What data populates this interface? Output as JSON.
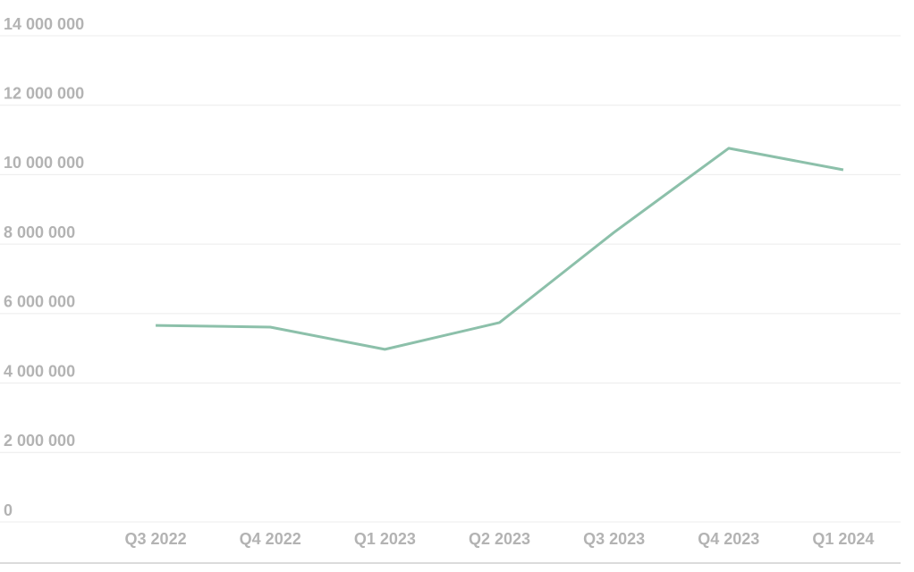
{
  "chart_data": {
    "type": "line",
    "categories": [
      "Q3 2022",
      "Q4 2022",
      "Q1 2023",
      "Q2 2023",
      "Q3 2023",
      "Q4 2023",
      "Q1 2024"
    ],
    "series": [
      {
        "color": "#8cc0aa",
        "values": [
          5660000,
          5610000,
          4970000,
          5740000,
          8340000,
          10760000,
          10140000
        ]
      }
    ],
    "ylim": [
      0,
      14000000
    ],
    "yticks": [
      0,
      {
        "value": 2000000,
        "label": "2 000 000"
      },
      {
        "value": 4000000,
        "label": "4 000 000"
      },
      {
        "value": 6000000,
        "label": "6 000 000"
      },
      {
        "value": 8000000,
        "label": "8 000 000"
      },
      {
        "value": 10000000,
        "label": "10 000 000"
      },
      {
        "value": 12000000,
        "label": "12 000 000"
      },
      {
        "value": 14000000,
        "label": "14 000 000"
      }
    ],
    "grid": true
  }
}
